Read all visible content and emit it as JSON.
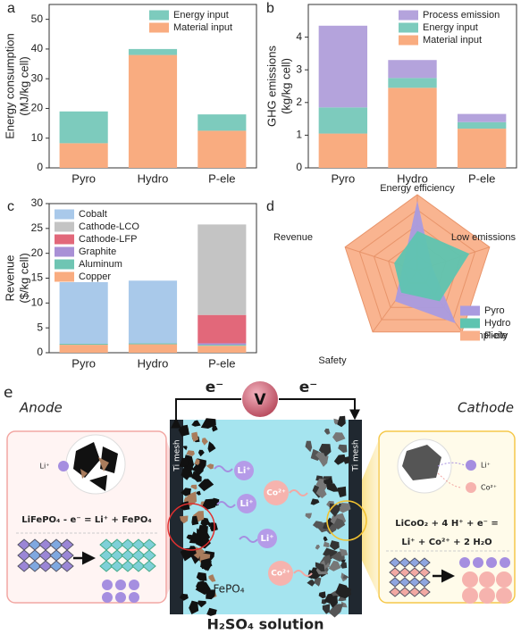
{
  "chart_data": [
    {
      "panel": "a",
      "type": "bar",
      "stacked": true,
      "categories": [
        "Pyro",
        "Hydro",
        "P-ele"
      ],
      "ylabel": [
        "Energy consumption",
        "(MJ/kg cell)"
      ],
      "ylim": [
        0,
        55
      ],
      "yticks": [
        0,
        10,
        20,
        30,
        40,
        50
      ],
      "legend": "upper right",
      "series": [
        {
          "name": "Energy input",
          "color": "#7dcbbd",
          "values": [
            10.7,
            2,
            5.5
          ]
        },
        {
          "name": "Material input",
          "color": "#f9ac80",
          "values": [
            8.3,
            38,
            12.5
          ]
        }
      ]
    },
    {
      "panel": "b",
      "type": "bar",
      "stacked": true,
      "categories": [
        "Pyro",
        "Hydro",
        "P-ele"
      ],
      "ylabel": [
        "GHG emissions",
        "(kg/kg cell)"
      ],
      "ylim": [
        0,
        5
      ],
      "yticks": [
        0,
        1,
        2,
        3,
        4
      ],
      "legend": "upper right",
      "series": [
        {
          "name": "Process emission",
          "color": "#b4a3dc",
          "values": [
            2.5,
            0.55,
            0.25
          ]
        },
        {
          "name": "Energy input",
          "color": "#7dcbbd",
          "values": [
            0.8,
            0.3,
            0.2
          ]
        },
        {
          "name": "Material input",
          "color": "#f9ac80",
          "values": [
            1.05,
            2.45,
            1.2
          ]
        }
      ]
    },
    {
      "panel": "c",
      "type": "bar",
      "stacked": true,
      "categories": [
        "Pyro",
        "Hydro",
        "P-ele"
      ],
      "ylabel": [
        "Revenue",
        "($/kg cell)"
      ],
      "ylim": [
        0,
        30
      ],
      "yticks": [
        0,
        5,
        10,
        15,
        20,
        25,
        30
      ],
      "legend": "upper left",
      "series": [
        {
          "name": "Cobalt",
          "color": "#a9c9ea",
          "values": [
            12.4,
            12.6,
            0
          ]
        },
        {
          "name": "Cathode-LCO",
          "color": "#c4c4c4",
          "values": [
            0,
            0,
            18.2
          ]
        },
        {
          "name": "Cathode-LFP",
          "color": "#e2687a",
          "values": [
            0,
            0,
            5.7
          ]
        },
        {
          "name": "Graphite",
          "color": "#a990d6",
          "values": [
            0,
            0,
            0.3
          ]
        },
        {
          "name": "Aluminum",
          "color": "#6fc5b3",
          "values": [
            0.2,
            0.2,
            0.2
          ]
        },
        {
          "name": "Copper",
          "color": "#f9ac80",
          "values": [
            1.6,
            1.7,
            1.4
          ]
        }
      ]
    },
    {
      "panel": "d",
      "type": "radar",
      "axes": [
        "Energy efficiency",
        "Low emissions",
        "Simplicity",
        "Safety",
        "Revenue"
      ],
      "rlim": [
        0,
        5
      ],
      "rticks": [
        1,
        2,
        3,
        4,
        5
      ],
      "legend": "lower right",
      "series": [
        {
          "name": "Pyro",
          "color": "#a99be0",
          "values": [
            4.6,
            1,
            4.3,
            2.5,
            1
          ]
        },
        {
          "name": "Hydro",
          "color": "#5ec4b0",
          "values": [
            2.6,
            3.6,
            2.5,
            1.8,
            1.6
          ]
        },
        {
          "name": "P-ele",
          "color": "#f9b08a",
          "values": [
            5,
            5,
            5,
            5,
            5
          ]
        }
      ]
    }
  ],
  "diagram": {
    "panel": "e",
    "anode": "Anode",
    "cathode": "Cathode",
    "electron_labels": [
      "e⁻",
      "e⁻"
    ],
    "voltmeter": "V",
    "electrode_labels": [
      "Ti mesh",
      "Ti mesh"
    ],
    "ion_labels": [
      "Li⁺",
      "Li⁺",
      "Co²⁺",
      "Li⁺",
      "Co²⁺"
    ],
    "anode_ion": "Li⁺",
    "anode_equation": "LiFePO₄ - e⁻ = Li⁺ + FePO₄",
    "cathode_ions": [
      "Li⁺",
      "Co²⁺"
    ],
    "cathode_equation": [
      "LiCoO₂ + 4 H⁺ + e⁻ =",
      "Li⁺ + Co²⁺ + 2 H₂O"
    ],
    "product": "FePO₄",
    "electrolyte": "H₂SO₄ solution"
  }
}
